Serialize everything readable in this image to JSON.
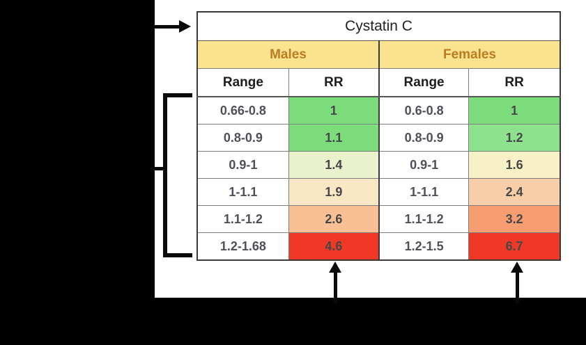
{
  "table": {
    "title": "Cystatin C",
    "groups": [
      {
        "label": "Males"
      },
      {
        "label": "Females"
      }
    ],
    "col_headers": [
      "Range",
      "RR",
      "Range",
      "RR"
    ],
    "rows": [
      {
        "m_range": "0.66-0.8",
        "m_rr": "1",
        "m_color": "#7cdc7c",
        "f_range": "0.6-0.8",
        "f_rr": "1",
        "f_color": "#7cdc7c"
      },
      {
        "m_range": "0.8-0.9",
        "m_rr": "1.1",
        "m_color": "#7cdc7c",
        "f_range": "0.8-0.9",
        "f_rr": "1.2",
        "f_color": "#8ee28e"
      },
      {
        "m_range": "0.9-1",
        "m_rr": "1.4",
        "m_color": "#eaf2cd",
        "f_range": "0.9-1",
        "f_rr": "1.6",
        "f_color": "#f8f0c6"
      },
      {
        "m_range": "1-1.1",
        "m_rr": "1.9",
        "m_color": "#f9e6c4",
        "f_range": "1-1.1",
        "f_rr": "2.4",
        "f_color": "#f8cea8"
      },
      {
        "m_range": "1.1-1.2",
        "m_rr": "2.6",
        "m_color": "#f8c094",
        "f_range": "1.1-1.2",
        "f_rr": "3.2",
        "f_color": "#f69e72"
      },
      {
        "m_range": "1.2-1.68",
        "m_rr": "4.6",
        "m_color": "#ef3826",
        "f_range": "1.2-1.5",
        "f_rr": "6.7",
        "f_color": "#ef3826"
      }
    ]
  },
  "colors": {
    "header_band": "#fae38e",
    "header_text": "#bd7c20",
    "rr_green": "#7cdc7c",
    "rr_red": "#ef3826",
    "background": "#000000",
    "panel": "#ffffff"
  },
  "annotations": {
    "title_pointer": "right-arrow",
    "rows_bracket": "square-bracket",
    "rr_pointers": [
      "up-arrow",
      "up-arrow"
    ]
  },
  "chart_data": {
    "type": "table",
    "title": "Cystatin C",
    "groups": [
      "Males",
      "Females"
    ],
    "columns": [
      "Range",
      "RR",
      "Range",
      "RR"
    ],
    "males": {
      "ranges": [
        "0.66-0.8",
        "0.8-0.9",
        "0.9-1",
        "1-1.1",
        "1.1-1.2",
        "1.2-1.68"
      ],
      "rr": [
        1,
        1.1,
        1.4,
        1.9,
        2.6,
        4.6
      ]
    },
    "females": {
      "ranges": [
        "0.6-0.8",
        "0.8-0.9",
        "0.9-1",
        "1-1.1",
        "1.1-1.2",
        "1.2-1.5"
      ],
      "rr": [
        1,
        1.2,
        1.6,
        2.4,
        3.2,
        6.7
      ]
    }
  }
}
